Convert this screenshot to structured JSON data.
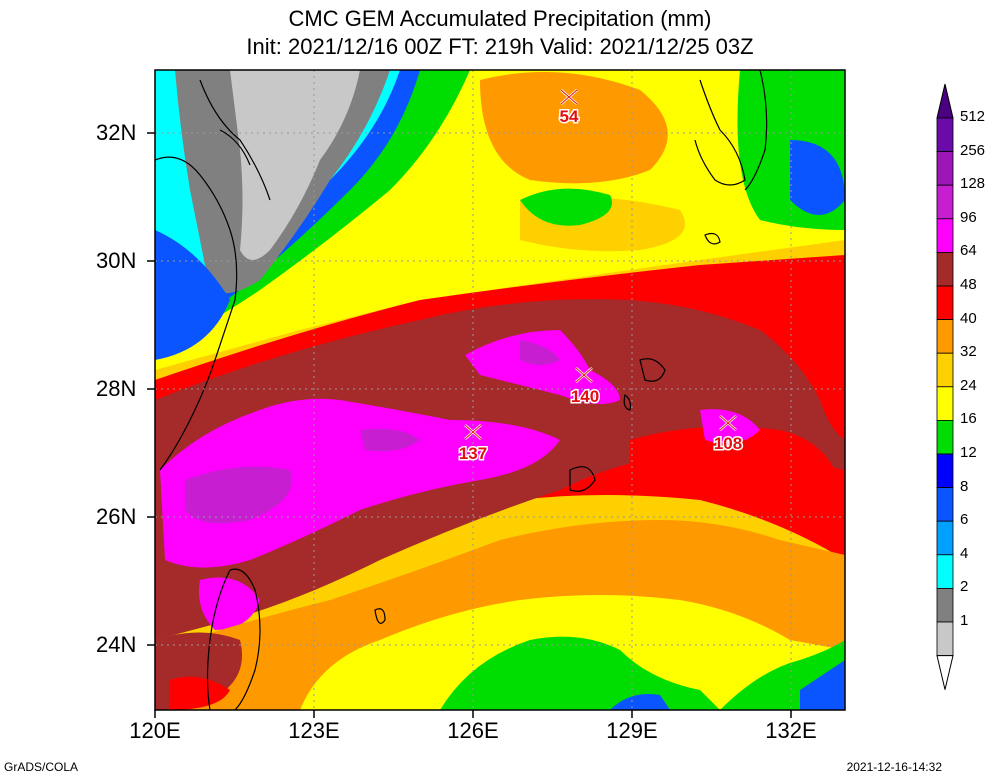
{
  "title": {
    "line1": "CMC GEM Accumulated Precipitation (mm)",
    "line2": "Init: 2021/12/16 00Z  FT: 219h  Valid: 2021/12/25 03Z"
  },
  "axes": {
    "lat_labels": [
      "32N",
      "30N",
      "28N",
      "26N",
      "24N"
    ],
    "lon_labels": [
      "120E",
      "123E",
      "126E",
      "129E",
      "132E"
    ]
  },
  "colorbar": {
    "levels": [
      "512",
      "256",
      "128",
      "96",
      "64",
      "48",
      "40",
      "32",
      "24",
      "16",
      "12",
      "8",
      "6",
      "4",
      "2",
      "1"
    ],
    "colors": [
      "#6a0aa8",
      "#9c16b8",
      "#c81ed2",
      "#ff00ff",
      "#a52a2a",
      "#ff0000",
      "#ff9900",
      "#ffd000",
      "#ffff00",
      "#00dd00",
      "#0000ff",
      "#0a55ff",
      "#00a0ff",
      "#00ffff",
      "#808080",
      "#c8c8c8"
    ]
  },
  "maxima": [
    {
      "value": "54"
    },
    {
      "value": "140"
    },
    {
      "value": "137"
    },
    {
      "value": "108"
    }
  ],
  "footer": {
    "left": "GrADS/COLA",
    "right": "2021-12-16-14:32"
  }
}
